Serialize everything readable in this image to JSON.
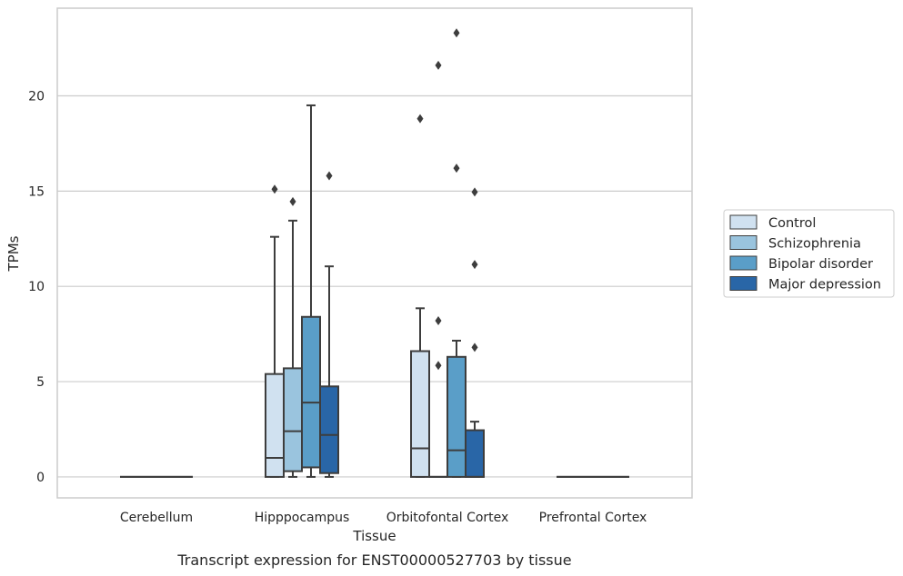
{
  "caption": "Transcript expression for ENST00000527703 by tissue",
  "chart_data": {
    "type": "box",
    "xlabel": "Tissue",
    "ylabel": "TPMs",
    "ylim": [
      -1.1,
      24.6
    ],
    "yticks": [
      0,
      5,
      10,
      15,
      20
    ],
    "grid": "horizontal",
    "legend_position": "right",
    "categories": [
      "Cerebellum",
      "Hipppocampus",
      "Orbitofontal Cortex",
      "Prefrontal Cortex"
    ],
    "series": [
      {
        "name": "Control",
        "color": "#d0e1f0",
        "boxes": [
          {
            "min": 0,
            "q1": 0,
            "median": 0,
            "q3": 0,
            "max": 0,
            "outliers": []
          },
          {
            "min": 0,
            "q1": 0,
            "median": 1.0,
            "q3": 5.4,
            "max": 12.6,
            "outliers": [
              15.1
            ]
          },
          {
            "min": 0,
            "q1": 0,
            "median": 1.5,
            "q3": 6.6,
            "max": 8.85,
            "outliers": [
              18.8
            ]
          },
          {
            "min": 0,
            "q1": 0,
            "median": 0,
            "q3": 0,
            "max": 0,
            "outliers": []
          }
        ]
      },
      {
        "name": "Schizophrenia",
        "color": "#9ac4de",
        "boxes": [
          {
            "min": 0,
            "q1": 0,
            "median": 0,
            "q3": 0,
            "max": 0,
            "outliers": []
          },
          {
            "min": 0,
            "q1": 0.3,
            "median": 2.4,
            "q3": 5.7,
            "max": 13.45,
            "outliers": [
              14.45
            ]
          },
          {
            "min": 0,
            "q1": 0,
            "median": 0,
            "q3": 0,
            "max": 0,
            "outliers": [
              5.85,
              8.2,
              21.6
            ]
          },
          {
            "min": 0,
            "q1": 0,
            "median": 0,
            "q3": 0,
            "max": 0,
            "outliers": []
          }
        ]
      },
      {
        "name": "Bipolar disorder",
        "color": "#5a9ec8",
        "boxes": [
          {
            "min": 0,
            "q1": 0,
            "median": 0,
            "q3": 0,
            "max": 0,
            "outliers": []
          },
          {
            "min": 0,
            "q1": 0.5,
            "median": 3.9,
            "q3": 8.4,
            "max": 19.5,
            "outliers": []
          },
          {
            "min": 0,
            "q1": 0,
            "median": 1.4,
            "q3": 6.3,
            "max": 7.15,
            "outliers": [
              16.2,
              23.3
            ]
          },
          {
            "min": 0,
            "q1": 0,
            "median": 0,
            "q3": 0,
            "max": 0,
            "outliers": []
          }
        ]
      },
      {
        "name": "Major depression",
        "color": "#2966a7",
        "boxes": [
          {
            "min": 0,
            "q1": 0,
            "median": 0,
            "q3": 0,
            "max": 0,
            "outliers": []
          },
          {
            "min": 0,
            "q1": 0.2,
            "median": 2.2,
            "q3": 4.75,
            "max": 11.05,
            "outliers": [
              15.8
            ]
          },
          {
            "min": 0,
            "q1": 0,
            "median": 0,
            "q3": 2.45,
            "max": 2.9,
            "outliers": [
              6.8,
              11.15,
              14.95
            ]
          },
          {
            "min": 0,
            "q1": 0,
            "median": 0,
            "q3": 0,
            "max": 0,
            "outliers": []
          }
        ]
      }
    ]
  }
}
